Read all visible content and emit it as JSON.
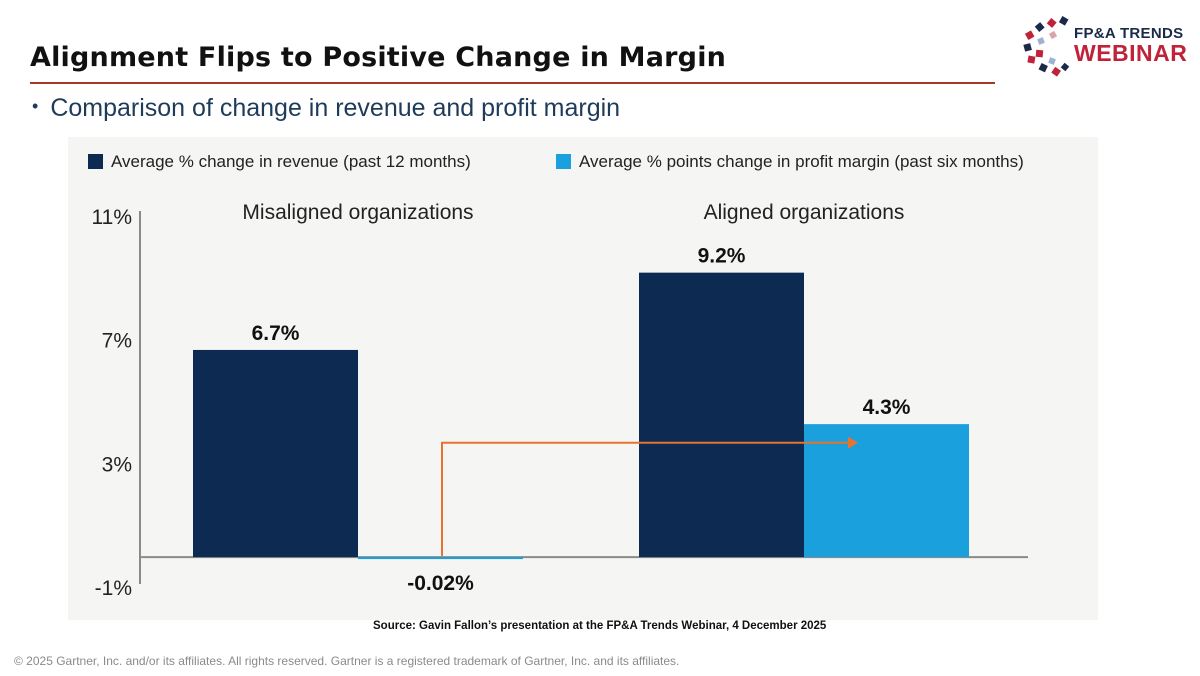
{
  "slide": {
    "title": "Alignment Flips to Positive Change in Margin",
    "bullet": "Comparison of change in revenue and profit margin",
    "source": "Source: Gavin Fallon’s presentation at the FP&A Trends Webinar, 4 December 2025",
    "copyright": "© 2025 Gartner, Inc. and/or its affiliates. All rights reserved. Gartner is a registered trademark of Gartner, Inc. and its affiliates."
  },
  "logo": {
    "line1": "FP&A TRENDS",
    "line2": "WEBINAR",
    "icon": "fpa-trends-logo-icon"
  },
  "colors": {
    "revenue": "#0d2a52",
    "margin": "#1aa0dc",
    "arrow": "#e8732e",
    "title_rule": "#a23a2a",
    "logo_red": "#c0223a",
    "logo_navy": "#1b2a4a"
  },
  "chart_data": {
    "type": "bar",
    "categories": [
      "Misaligned organizations",
      "Aligned organizations"
    ],
    "series": [
      {
        "name": "Average % change in revenue (past 12 months)",
        "values": [
          6.7,
          9.2
        ],
        "labels": [
          "6.7%",
          "9.2%"
        ]
      },
      {
        "name": "Average % points change in profit margin (past six months)",
        "values": [
          -0.02,
          4.3
        ],
        "labels": [
          "-0.02%",
          "4.3%"
        ]
      }
    ],
    "yticks": [
      11,
      7,
      3,
      -1
    ],
    "ytick_labels": [
      "11%",
      "7%",
      "3%",
      "-1%"
    ],
    "ylim": [
      -1,
      11
    ],
    "legend_position": "top",
    "annotation": "arrow from misaligned margin change to aligned margin change"
  }
}
